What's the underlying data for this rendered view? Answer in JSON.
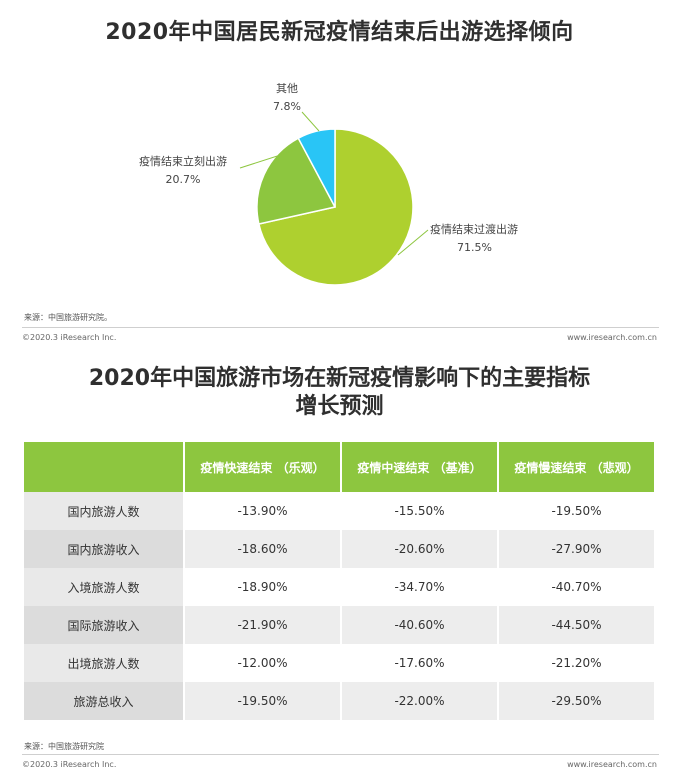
{
  "chart_data": [
    {
      "type": "pie",
      "title": "2020年中国居民新冠疫情结束后出游选择倾向",
      "slices": [
        {
          "label": "疫情结束过渡出游",
          "value": 71.5,
          "value_label": "71.5%",
          "color": "#aed02f"
        },
        {
          "label": "疫情结束立刻出游",
          "value": 20.7,
          "value_label": "20.7%",
          "color": "#8dc63f"
        },
        {
          "label": "其他",
          "value": 7.8,
          "value_label": "7.8%",
          "color": "#29c5f6"
        }
      ]
    },
    {
      "type": "table",
      "title_line1": "2020年中国旅游市场在新冠疫情影响下的主要指标",
      "title_line2": "增长预测",
      "columns": [
        "",
        "疫情快速结束  （乐观）",
        "疫情中速结束  （基准）",
        "疫情慢速结束  （悲观）"
      ],
      "rows": [
        {
          "label": "国内旅游人数",
          "values": [
            "-13.90%",
            "-15.50%",
            "-19.50%"
          ]
        },
        {
          "label": "国内旅游收入",
          "values": [
            "-18.60%",
            "-20.60%",
            "-27.90%"
          ]
        },
        {
          "label": "入境旅游人数",
          "values": [
            "-18.90%",
            "-34.70%",
            "-40.70%"
          ]
        },
        {
          "label": "国际旅游收入",
          "values": [
            "-21.90%",
            "-40.60%",
            "-44.50%"
          ]
        },
        {
          "label": "出境旅游人数",
          "values": [
            "-12.00%",
            "-17.60%",
            "-21.20%"
          ]
        },
        {
          "label": "旅游总收入",
          "values": [
            "-19.50%",
            "-22.00%",
            "-29.50%"
          ]
        }
      ]
    }
  ],
  "footer1": {
    "source": "来源：中国旅游研究院。",
    "copyright": "©2020.3 iResearch Inc.",
    "website": "www.iresearch.com.cn"
  },
  "footer2": {
    "source": "来源：中国旅游研究院",
    "copyright": "©2020.3 iResearch Inc.",
    "website": "www.iresearch.com.cn"
  }
}
